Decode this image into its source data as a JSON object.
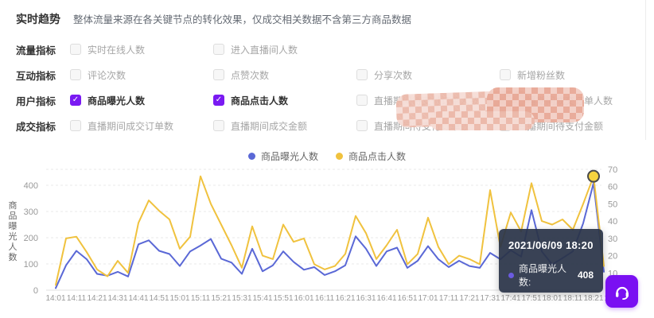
{
  "panel": {
    "title": "实时趋势",
    "subtitle": "整体流量来源在各关键节点的转化效果，仅成交相关数据不含第三方商品数据"
  },
  "filters": [
    {
      "group": "流量指标",
      "items": [
        {
          "label": "实时在线人数",
          "checked": false
        },
        {
          "label": "进入直播间人数",
          "checked": false
        }
      ]
    },
    {
      "group": "互动指标",
      "items": [
        {
          "label": "评论次数",
          "checked": false
        },
        {
          "label": "点赞次数",
          "checked": false
        },
        {
          "label": "分享次数",
          "checked": false
        },
        {
          "label": "新增粉丝数",
          "checked": false
        }
      ]
    },
    {
      "group": "用户指标",
      "items": [
        {
          "label": "商品曝光人数",
          "checked": true
        },
        {
          "label": "商品点击人数",
          "checked": true
        },
        {
          "label": "直播期间待支付订单人数",
          "checked": false
        },
        {
          "label": "直播期间成交订单人数",
          "checked": false
        }
      ]
    },
    {
      "group": "成交指标",
      "items": [
        {
          "label": "直播期间成交订单数",
          "checked": false
        },
        {
          "label": "直播期间成交金额",
          "checked": false
        },
        {
          "label": "直播期间待支付订单数",
          "checked": false
        },
        {
          "label": "直播期间待支付金额",
          "checked": false
        }
      ]
    }
  ],
  "legend": {
    "items": [
      {
        "label": "商品曝光人数",
        "color": "#5a68d6"
      },
      {
        "label": "商品点击人数",
        "color": "#f0c23e"
      }
    ]
  },
  "chart_data": {
    "type": "line",
    "title": "实时趋势",
    "x_labels": [
      "14:01",
      "14:11",
      "14:21",
      "14:31",
      "14:41",
      "14:51",
      "15:01",
      "15:11",
      "15:21",
      "15:31",
      "15:41",
      "15:51",
      "16:01",
      "16:11",
      "16:21",
      "16:31",
      "16:41",
      "16:51",
      "17:01",
      "17:11",
      "17:21",
      "17:31",
      "17:41",
      "17:51",
      "18:01",
      "18:11",
      "18:21",
      "18:31"
    ],
    "start_time": "14:01",
    "interval_minutes": 5,
    "y_left": {
      "label": "商品曝光人数",
      "ticks": [
        0,
        100,
        200,
        300,
        400
      ],
      "max_plot": 460
    },
    "y_right": {
      "ticks": [
        10,
        20,
        30,
        40,
        50,
        60,
        70
      ],
      "max_plot": 70
    },
    "grid": "dashed",
    "legend_position": "top-center",
    "series": [
      {
        "name": "商品曝光人数",
        "axis": "left",
        "color": "#5a68d6",
        "values": [
          8,
          95,
          150,
          118,
          62,
          55,
          70,
          52,
          175,
          190,
          150,
          138,
          92,
          148,
          170,
          195,
          120,
          105,
          62,
          158,
          72,
          95,
          148,
          108,
          78,
          88,
          58,
          72,
          95,
          205,
          158,
          92,
          148,
          162,
          85,
          112,
          168,
          118,
          88,
          112,
          92,
          85,
          142,
          118,
          152,
          128,
          305,
          148,
          98,
          122,
          148,
          255,
          408,
          70
        ]
      },
      {
        "name": "商品点击人数",
        "axis": "right",
        "color": "#f0c23e",
        "values": [
          3,
          30,
          31,
          22,
          12,
          8,
          17,
          10,
          39,
          52,
          46,
          41,
          24,
          31,
          66,
          50,
          38,
          26,
          13,
          37,
          20,
          18,
          38,
          28,
          30,
          15,
          12,
          14,
          21,
          43,
          33,
          18,
          26,
          35,
          15,
          21,
          42,
          25,
          15,
          20,
          18,
          15,
          58,
          25,
          45,
          34,
          62,
          40,
          38,
          41,
          35,
          50,
          66,
          14
        ]
      }
    ],
    "highlight": {
      "series": "商品点击人数",
      "time": "18:21",
      "index": 52,
      "value": 66,
      "fill": "#f6d33f",
      "ring": "#4a4a4a"
    }
  },
  "tooltip": {
    "datetime": "2021/06/09 18:20",
    "series_label": "商品曝光人数:",
    "value": "408",
    "marker_color": "#6b5be0"
  },
  "icons": {
    "check": "✓",
    "support": "headset-icon",
    "legend_marker": "circle"
  },
  "colors": {
    "accent": "#7a1af2",
    "series_exposure": "#5a68d6",
    "series_click": "#f0c23e",
    "axis_text": "#999999",
    "grid_line": "#e8e8e8",
    "tooltip_bg": "rgba(42,52,72,0.93)"
  }
}
